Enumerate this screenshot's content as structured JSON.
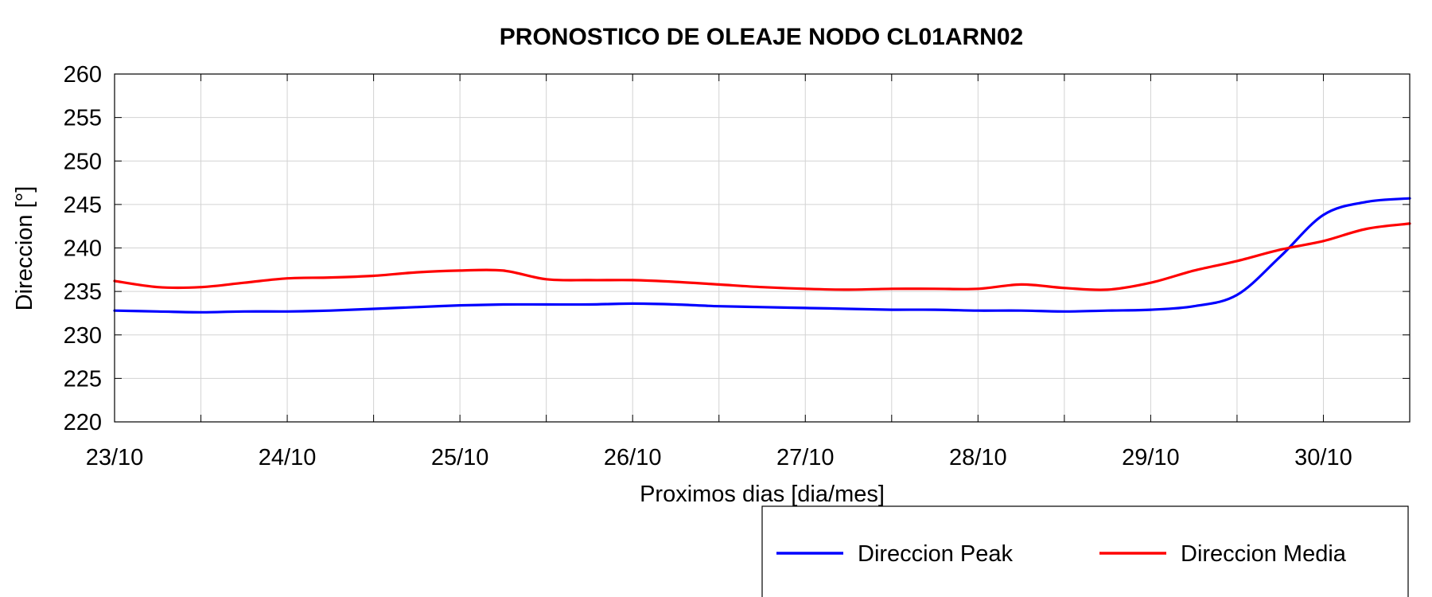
{
  "chart_data": {
    "type": "line",
    "title": "PRONOSTICO DE OLEAJE NODO CL01ARN02",
    "xlabel": "Proximos dias [dia/mes]",
    "ylabel": "Direccion [°]",
    "xlim": [
      0,
      7.5
    ],
    "ylim": [
      220,
      260
    ],
    "x_tick_labels": [
      "23/10",
      "24/10",
      "25/10",
      "26/10",
      "27/10",
      "28/10",
      "29/10",
      "30/10"
    ],
    "y_ticks": [
      220,
      225,
      230,
      235,
      240,
      245,
      250,
      255,
      260
    ],
    "grid": true,
    "legend_position": "bottom-right, below plot",
    "x": [
      0,
      0.25,
      0.5,
      0.75,
      1.0,
      1.25,
      1.5,
      1.75,
      2.0,
      2.25,
      2.5,
      2.75,
      3.0,
      3.25,
      3.5,
      3.75,
      4.0,
      4.25,
      4.5,
      4.75,
      5.0,
      5.25,
      5.5,
      5.75,
      6.0,
      6.25,
      6.5,
      6.75,
      7.0,
      7.25,
      7.5
    ],
    "series": [
      {
        "name": "Direccion Peak",
        "color": "#0000ff",
        "values": [
          232.8,
          232.7,
          232.6,
          232.7,
          232.7,
          232.8,
          233.0,
          233.2,
          233.4,
          233.5,
          233.5,
          233.5,
          233.6,
          233.5,
          233.3,
          233.2,
          233.1,
          233.0,
          232.9,
          232.9,
          232.8,
          232.8,
          232.7,
          232.8,
          232.9,
          233.3,
          234.6,
          239.0,
          243.8,
          245.3,
          245.7
        ]
      },
      {
        "name": "Direccion Media",
        "color": "#ff0000",
        "values": [
          236.2,
          235.5,
          235.5,
          236.0,
          236.5,
          236.6,
          236.8,
          237.2,
          237.4,
          237.4,
          236.4,
          236.3,
          236.3,
          236.1,
          235.8,
          235.5,
          235.3,
          235.2,
          235.3,
          235.3,
          235.3,
          235.8,
          235.4,
          235.2,
          236.0,
          237.4,
          238.5,
          239.8,
          240.8,
          242.2,
          242.8
        ]
      }
    ]
  }
}
